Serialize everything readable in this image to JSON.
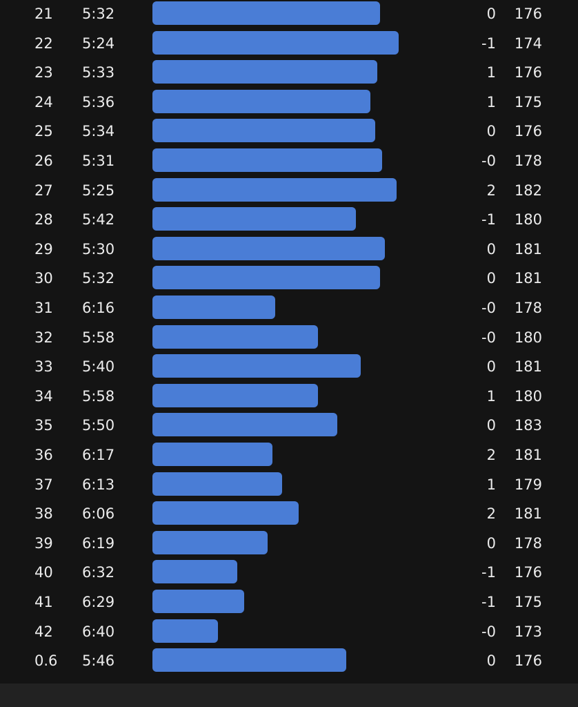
{
  "splits": {
    "rows": [
      {
        "km": "21",
        "pace": "5:32",
        "elev": "0",
        "cadence": "176",
        "pace_seconds": 332
      },
      {
        "km": "22",
        "pace": "5:24",
        "elev": "-1",
        "cadence": "174",
        "pace_seconds": 324
      },
      {
        "km": "23",
        "pace": "5:33",
        "elev": "1",
        "cadence": "176",
        "pace_seconds": 333
      },
      {
        "km": "24",
        "pace": "5:36",
        "elev": "1",
        "cadence": "175",
        "pace_seconds": 336
      },
      {
        "km": "25",
        "pace": "5:34",
        "elev": "0",
        "cadence": "176",
        "pace_seconds": 334
      },
      {
        "km": "26",
        "pace": "5:31",
        "elev": "-0",
        "cadence": "178",
        "pace_seconds": 331
      },
      {
        "km": "27",
        "pace": "5:25",
        "elev": "2",
        "cadence": "182",
        "pace_seconds": 325
      },
      {
        "km": "28",
        "pace": "5:42",
        "elev": "-1",
        "cadence": "180",
        "pace_seconds": 342
      },
      {
        "km": "29",
        "pace": "5:30",
        "elev": "0",
        "cadence": "181",
        "pace_seconds": 330
      },
      {
        "km": "30",
        "pace": "5:32",
        "elev": "0",
        "cadence": "181",
        "pace_seconds": 332
      },
      {
        "km": "31",
        "pace": "6:16",
        "elev": "-0",
        "cadence": "178",
        "pace_seconds": 376
      },
      {
        "km": "32",
        "pace": "5:58",
        "elev": "-0",
        "cadence": "180",
        "pace_seconds": 358
      },
      {
        "km": "33",
        "pace": "5:40",
        "elev": "0",
        "cadence": "181",
        "pace_seconds": 340
      },
      {
        "km": "34",
        "pace": "5:58",
        "elev": "1",
        "cadence": "180",
        "pace_seconds": 358
      },
      {
        "km": "35",
        "pace": "5:50",
        "elev": "0",
        "cadence": "183",
        "pace_seconds": 350
      },
      {
        "km": "36",
        "pace": "6:17",
        "elev": "2",
        "cadence": "181",
        "pace_seconds": 377
      },
      {
        "km": "37",
        "pace": "6:13",
        "elev": "1",
        "cadence": "179",
        "pace_seconds": 373
      },
      {
        "km": "38",
        "pace": "6:06",
        "elev": "2",
        "cadence": "181",
        "pace_seconds": 366
      },
      {
        "km": "39",
        "pace": "6:19",
        "elev": "0",
        "cadence": "178",
        "pace_seconds": 379
      },
      {
        "km": "40",
        "pace": "6:32",
        "elev": "-1",
        "cadence": "176",
        "pace_seconds": 392
      },
      {
        "km": "41",
        "pace": "6:29",
        "elev": "-1",
        "cadence": "175",
        "pace_seconds": 389
      },
      {
        "km": "42",
        "pace": "6:40",
        "elev": "-0",
        "cadence": "173",
        "pace_seconds": 400
      },
      {
        "km": "0.6",
        "pace": "5:46",
        "elev": "0",
        "cadence": "176",
        "pace_seconds": 346
      }
    ]
  },
  "colors": {
    "background": "#141414",
    "bar": "#4a7dd6",
    "text": "#ececec",
    "bottom_bar": "#222222"
  }
}
